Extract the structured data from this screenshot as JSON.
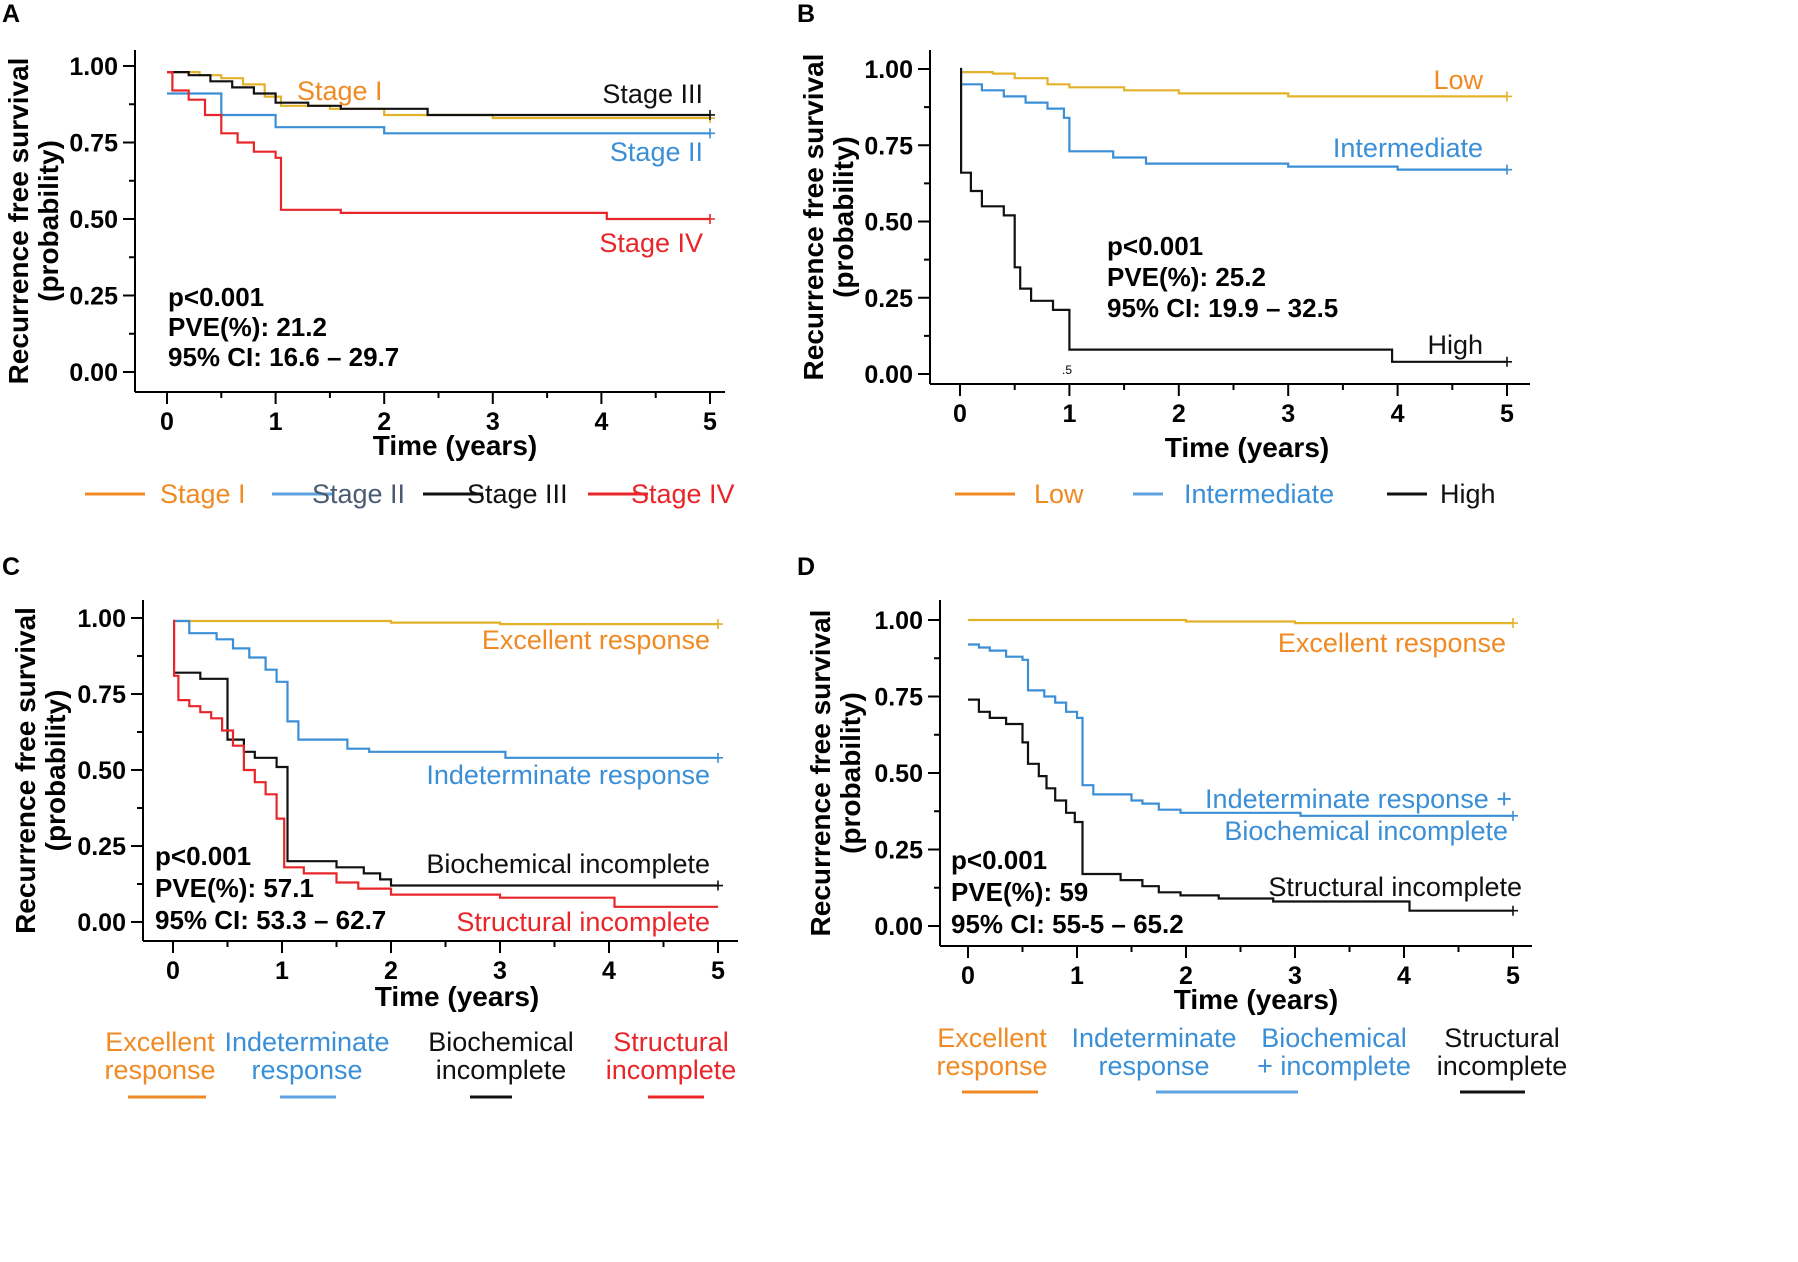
{
  "colors": {
    "orange": "#f08a24",
    "gold": "#e3b22b",
    "blue": "#3a8fd6",
    "legend_blue": "#5ea3e0",
    "black": "#111111",
    "red": "#e8262a",
    "slate": "#4a5a72"
  },
  "chart_data": [
    {
      "type": "line",
      "panel": "A",
      "xlabel": "Time (years)",
      "ylabel_line1": "Recurrence free survival",
      "ylabel_line2": "(probability)",
      "x_ticks": [
        "0",
        "1",
        "2",
        "3",
        "4",
        "5"
      ],
      "y_ticks": [
        "0.00",
        "0.25",
        "0.50",
        "0.75",
        "1.00"
      ],
      "xlim": [
        0,
        5
      ],
      "ylim": [
        0,
        1
      ],
      "stats": {
        "p": "p<0.001",
        "pve": "PVE(%): 21.2",
        "ci": "95% CI: 16.6 – 29.7"
      },
      "series": [
        {
          "name": "Stage I",
          "color": "gold",
          "steps": [
            [
              0,
              0.98
            ],
            [
              0.3,
              0.97
            ],
            [
              0.5,
              0.96
            ],
            [
              0.7,
              0.94
            ],
            [
              0.9,
              0.9
            ],
            [
              1.05,
              0.87
            ],
            [
              1.5,
              0.86
            ],
            [
              2,
              0.84
            ],
            [
              3,
              0.83
            ],
            [
              5,
              0.83
            ]
          ]
        },
        {
          "name": "Stage II",
          "color": "blue",
          "steps": [
            [
              0,
              0.91
            ],
            [
              0.5,
              0.84
            ],
            [
              1.0,
              0.8
            ],
            [
              2,
              0.78
            ],
            [
              5,
              0.78
            ]
          ]
        },
        {
          "name": "Stage III",
          "color": "black",
          "steps": [
            [
              0,
              0.98
            ],
            [
              0.2,
              0.97
            ],
            [
              0.4,
              0.95
            ],
            [
              0.6,
              0.93
            ],
            [
              0.8,
              0.91
            ],
            [
              1.0,
              0.88
            ],
            [
              1.3,
              0.87
            ],
            [
              1.6,
              0.86
            ],
            [
              2.4,
              0.84
            ],
            [
              5,
              0.84
            ]
          ]
        },
        {
          "name": "Stage IV",
          "color": "red",
          "steps": [
            [
              0,
              0.98
            ],
            [
              0.05,
              0.92
            ],
            [
              0.2,
              0.89
            ],
            [
              0.35,
              0.84
            ],
            [
              0.5,
              0.78
            ],
            [
              0.65,
              0.75
            ],
            [
              0.8,
              0.72
            ],
            [
              1.0,
              0.7
            ],
            [
              1.05,
              0.53
            ],
            [
              1.6,
              0.52
            ],
            [
              4.05,
              0.5
            ],
            [
              5,
              0.5
            ]
          ]
        }
      ],
      "curve_labels": [
        {
          "text": "Stage I",
          "color": "orange"
        },
        {
          "text": "Stage III",
          "color": "black"
        },
        {
          "text": "Stage II",
          "color": "blue"
        },
        {
          "text": "Stage IV",
          "color": "red"
        }
      ],
      "legend": [
        {
          "label": "Stage I",
          "line_color": "orange",
          "text_color": "orange"
        },
        {
          "label": "Stage II",
          "line_color": "legend_blue",
          "text_color": "slate"
        },
        {
          "label": "Stage III",
          "line_color": "black",
          "text_color": "black"
        },
        {
          "label": "Stage IV",
          "line_color": "red",
          "text_color": "red"
        }
      ]
    },
    {
      "type": "line",
      "panel": "B",
      "xlabel": "Time (years)",
      "ylabel_line1": "Recurrence free survival",
      "ylabel_line2": "(probability)",
      "x_ticks": [
        "0",
        "1",
        "2",
        "3",
        "4",
        "5"
      ],
      "y_ticks": [
        "0.00",
        "0.25",
        "0.50",
        "0.75",
        "1.00"
      ],
      "xlim": [
        0,
        5
      ],
      "ylim": [
        0,
        1
      ],
      "stats": {
        "p": "p<0.001",
        "pve": "PVE(%): 25.2",
        "ci": "95% CI: 19.9 – 32.5"
      },
      "annotation": ".5",
      "series": [
        {
          "name": "Low",
          "color": "gold",
          "steps": [
            [
              0,
              0.99
            ],
            [
              0.3,
              0.985
            ],
            [
              0.5,
              0.97
            ],
            [
              0.8,
              0.95
            ],
            [
              1.0,
              0.94
            ],
            [
              1.5,
              0.93
            ],
            [
              2,
              0.92
            ],
            [
              3,
              0.91
            ],
            [
              5,
              0.91
            ]
          ]
        },
        {
          "name": "Intermediate",
          "color": "blue",
          "steps": [
            [
              0,
              0.95
            ],
            [
              0.2,
              0.93
            ],
            [
              0.4,
              0.91
            ],
            [
              0.6,
              0.89
            ],
            [
              0.8,
              0.87
            ],
            [
              0.95,
              0.84
            ],
            [
              1.0,
              0.73
            ],
            [
              1.4,
              0.71
            ],
            [
              1.7,
              0.69
            ],
            [
              3,
              0.68
            ],
            [
              4,
              0.67
            ],
            [
              5,
              0.67
            ]
          ]
        },
        {
          "name": "High",
          "color": "black",
          "steps": [
            [
              0,
              1.0
            ],
            [
              0.01,
              0.66
            ],
            [
              0.1,
              0.6
            ],
            [
              0.2,
              0.55
            ],
            [
              0.4,
              0.52
            ],
            [
              0.5,
              0.35
            ],
            [
              0.55,
              0.28
            ],
            [
              0.65,
              0.24
            ],
            [
              0.85,
              0.21
            ],
            [
              1.0,
              0.08
            ],
            [
              3.95,
              0.04
            ],
            [
              5,
              0.04
            ]
          ]
        }
      ],
      "curve_labels": [
        {
          "text": "Low",
          "color": "orange"
        },
        {
          "text": "Intermediate",
          "color": "blue"
        },
        {
          "text": "High",
          "color": "black"
        }
      ],
      "legend": [
        {
          "label": "Low",
          "line_color": "orange",
          "text_color": "orange"
        },
        {
          "label": "Intermediate",
          "line_color": "legend_blue",
          "text_color": "blue"
        },
        {
          "label": "High",
          "line_color": "black",
          "text_color": "black"
        }
      ]
    },
    {
      "type": "line",
      "panel": "C",
      "xlabel": "Time (years)",
      "ylabel_line1": "Recurrence free survival",
      "ylabel_line2": "(probability)",
      "x_ticks": [
        "0",
        "1",
        "2",
        "3",
        "4",
        "5"
      ],
      "y_ticks": [
        "0.00",
        "0.25",
        "0.50",
        "0.75",
        "1.00"
      ],
      "xlim": [
        0,
        5
      ],
      "ylim": [
        0,
        1
      ],
      "stats": {
        "p": "p<0.001",
        "pve": "PVE(%): 57.1",
        "ci": "95% CI: 53.3 – 62.7"
      },
      "series": [
        {
          "name": "Excellent response",
          "color": "gold",
          "steps": [
            [
              0,
              0.99
            ],
            [
              2,
              0.985
            ],
            [
              3,
              0.98
            ],
            [
              5,
              0.98
            ]
          ]
        },
        {
          "name": "Indeterminate response",
          "color": "blue",
          "steps": [
            [
              0,
              0.99
            ],
            [
              0.15,
              0.95
            ],
            [
              0.4,
              0.93
            ],
            [
              0.55,
              0.9
            ],
            [
              0.7,
              0.87
            ],
            [
              0.85,
              0.83
            ],
            [
              0.95,
              0.79
            ],
            [
              1.05,
              0.66
            ],
            [
              1.15,
              0.6
            ],
            [
              1.6,
              0.57
            ],
            [
              1.8,
              0.56
            ],
            [
              3.05,
              0.54
            ],
            [
              5,
              0.54
            ]
          ]
        },
        {
          "name": "Biochemical incomplete",
          "color": "black",
          "steps": [
            [
              0,
              0.82
            ],
            [
              0.25,
              0.8
            ],
            [
              0.5,
              0.6
            ],
            [
              0.65,
              0.56
            ],
            [
              0.75,
              0.54
            ],
            [
              0.95,
              0.51
            ],
            [
              1.05,
              0.2
            ],
            [
              1.3,
              0.2
            ],
            [
              1.5,
              0.18
            ],
            [
              1.75,
              0.16
            ],
            [
              1.9,
              0.14
            ],
            [
              2.0,
              0.12
            ],
            [
              5,
              0.12
            ]
          ]
        },
        {
          "name": "Structural incomplete",
          "color": "red",
          "steps": [
            [
              0,
              0.99
            ],
            [
              0.01,
              0.81
            ],
            [
              0.05,
              0.73
            ],
            [
              0.15,
              0.71
            ],
            [
              0.25,
              0.69
            ],
            [
              0.35,
              0.67
            ],
            [
              0.45,
              0.63
            ],
            [
              0.55,
              0.58
            ],
            [
              0.65,
              0.5
            ],
            [
              0.75,
              0.46
            ],
            [
              0.85,
              0.42
            ],
            [
              0.95,
              0.34
            ],
            [
              1.02,
              0.18
            ],
            [
              1.2,
              0.16
            ],
            [
              1.5,
              0.13
            ],
            [
              1.7,
              0.11
            ],
            [
              2.0,
              0.09
            ],
            [
              3.0,
              0.08
            ],
            [
              4.05,
              0.05
            ],
            [
              5,
              0.05
            ]
          ]
        }
      ],
      "curve_labels": [
        {
          "text": "Excellent response",
          "color": "orange"
        },
        {
          "text": "Indeterminate response",
          "color": "blue"
        },
        {
          "text": "Biochemical incomplete",
          "color": "black"
        },
        {
          "text": "Structural incomplete",
          "color": "red"
        }
      ],
      "legend": [
        {
          "line1": "Excellent",
          "line2": "response",
          "line_color": "orange",
          "text_color": "orange"
        },
        {
          "line1": "Indeterminate",
          "line2": "response",
          "line_color": "legend_blue",
          "text_color": "blue"
        },
        {
          "line1": "Biochemical",
          "line2": "incomplete",
          "line_color": "black",
          "text_color": "black"
        },
        {
          "line1": "Structural",
          "line2": "incomplete",
          "line_color": "red",
          "text_color": "red"
        }
      ]
    },
    {
      "type": "line",
      "panel": "D",
      "xlabel": "Time (years)",
      "ylabel_line1": "Recurrence free survival",
      "ylabel_line2": "(probability)",
      "x_ticks": [
        "0",
        "1",
        "2",
        "3",
        "4",
        "5"
      ],
      "y_ticks": [
        "0.00",
        "0.25",
        "0.50",
        "0.75",
        "1.00"
      ],
      "xlim": [
        0,
        5
      ],
      "ylim": [
        0,
        1
      ],
      "stats": {
        "p": "p<0.001",
        "pve": "PVE(%): 59",
        "ci": "95% CI: 55-5 – 65.2"
      },
      "series": [
        {
          "name": "Excellent response",
          "color": "gold",
          "steps": [
            [
              0,
              1.0
            ],
            [
              2,
              0.995
            ],
            [
              3,
              0.99
            ],
            [
              5,
              0.99
            ]
          ]
        },
        {
          "name": "Indeterminate response + Biochemical incomplete",
          "color": "blue",
          "steps": [
            [
              0,
              0.92
            ],
            [
              0.1,
              0.91
            ],
            [
              0.2,
              0.9
            ],
            [
              0.35,
              0.88
            ],
            [
              0.5,
              0.87
            ],
            [
              0.55,
              0.77
            ],
            [
              0.7,
              0.75
            ],
            [
              0.8,
              0.73
            ],
            [
              0.9,
              0.7
            ],
            [
              1.0,
              0.68
            ],
            [
              1.05,
              0.46
            ],
            [
              1.15,
              0.43
            ],
            [
              1.5,
              0.41
            ],
            [
              1.6,
              0.4
            ],
            [
              1.75,
              0.38
            ],
            [
              1.95,
              0.37
            ],
            [
              3.05,
              0.36
            ],
            [
              5,
              0.36
            ]
          ]
        },
        {
          "name": "Structural incomplete",
          "color": "black",
          "steps": [
            [
              0,
              0.74
            ],
            [
              0.1,
              0.7
            ],
            [
              0.2,
              0.68
            ],
            [
              0.35,
              0.66
            ],
            [
              0.5,
              0.6
            ],
            [
              0.55,
              0.53
            ],
            [
              0.65,
              0.49
            ],
            [
              0.72,
              0.45
            ],
            [
              0.8,
              0.41
            ],
            [
              0.9,
              0.37
            ],
            [
              0.98,
              0.34
            ],
            [
              1.05,
              0.17
            ],
            [
              1.4,
              0.15
            ],
            [
              1.6,
              0.13
            ],
            [
              1.75,
              0.11
            ],
            [
              1.95,
              0.1
            ],
            [
              2.3,
              0.09
            ],
            [
              2.8,
              0.08
            ],
            [
              4.05,
              0.05
            ],
            [
              5,
              0.05
            ]
          ]
        }
      ],
      "curve_labels": [
        {
          "text": "Excellent response",
          "color": "orange"
        },
        {
          "text": "Indeterminate response +",
          "color": "blue"
        },
        {
          "text": "Biochemical incomplete",
          "color": "blue"
        },
        {
          "text": "Structural incomplete",
          "color": "black"
        }
      ],
      "legend": [
        {
          "line1": "Excellent",
          "line2": "response",
          "line_color": "orange",
          "text_color": "orange"
        },
        {
          "line1": "Indeterminate",
          "line2": "response",
          "line_color": "legend_blue",
          "text_color": "blue"
        },
        {
          "line1": "Biochemical",
          "line2": "+  incomplete",
          "line_color": "none",
          "text_color": "blue"
        },
        {
          "line1": "Structural",
          "line2": "incomplete",
          "line_color": "black",
          "text_color": "black"
        }
      ]
    }
  ]
}
